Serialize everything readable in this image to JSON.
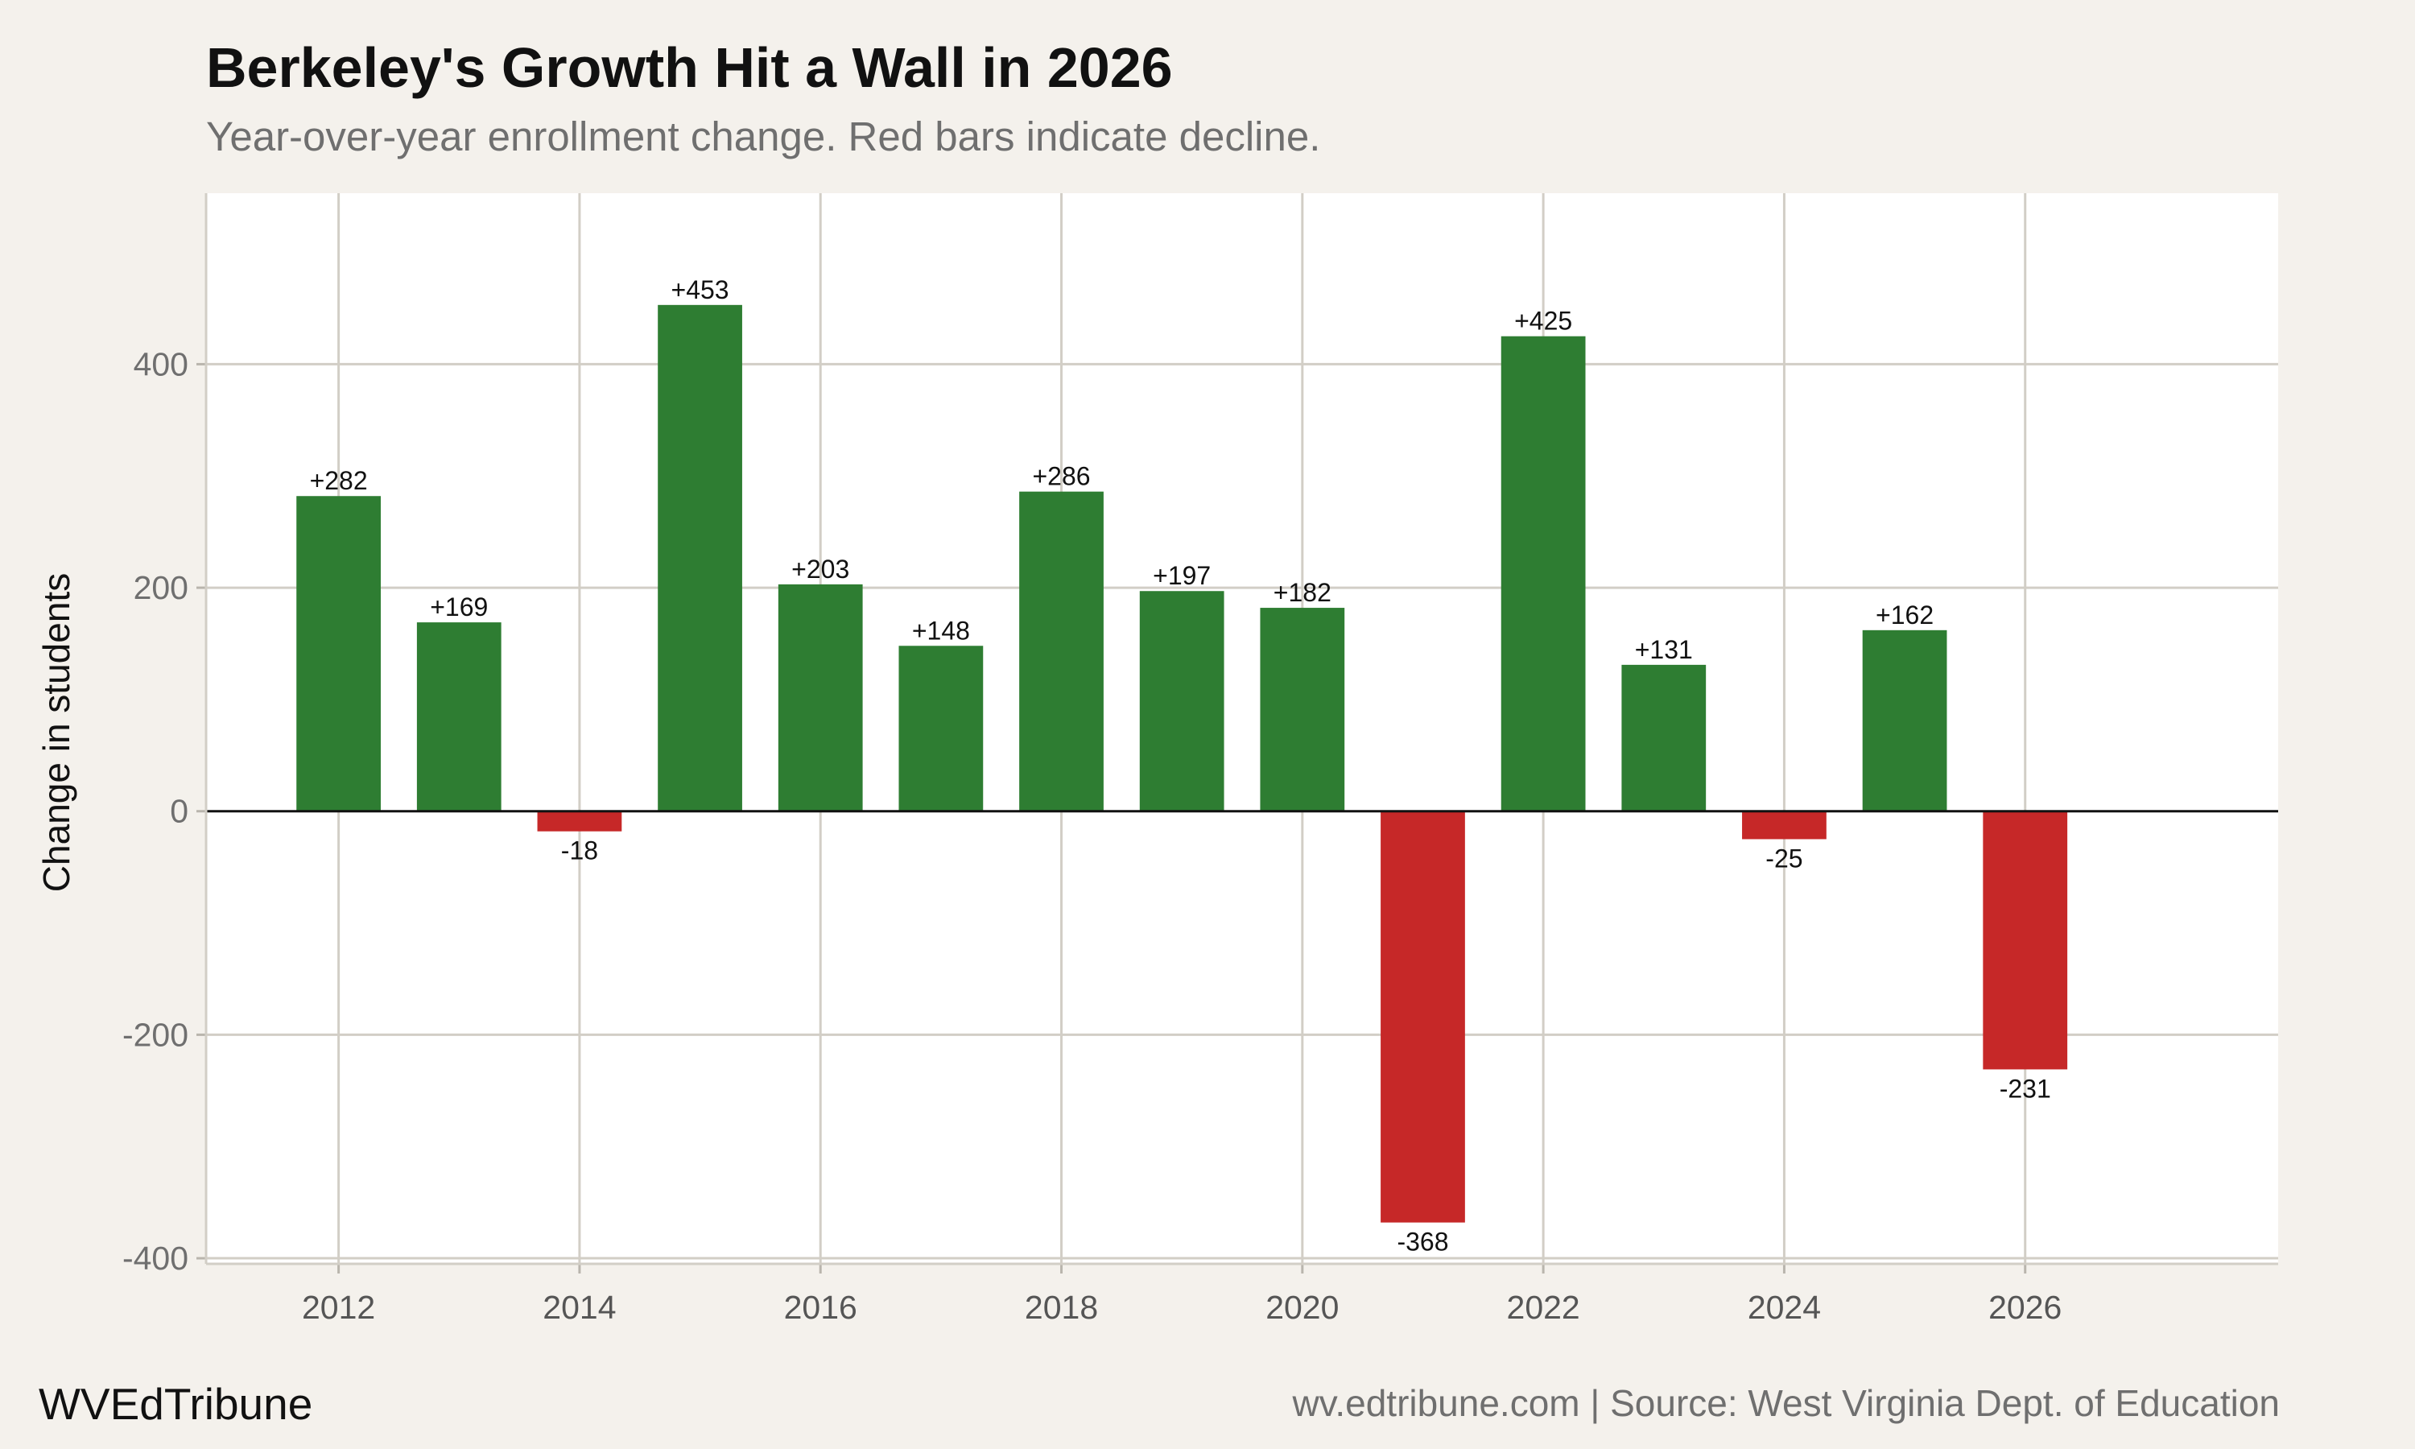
{
  "header": {
    "title": "Berkeley's Growth Hit a Wall in 2026",
    "subtitle": "Year-over-year enrollment change. Red bars indicate decline."
  },
  "footer": {
    "brand": "WVEdTribune",
    "source": "wv.edtribune.com | Source: West Virginia Dept. of Education"
  },
  "colors": {
    "increase": "#2e7d32",
    "decrease": "#c62828",
    "grid": "#d2cec6",
    "zero_line": "#111111",
    "panel": "#ffffff"
  },
  "chart_data": {
    "type": "bar",
    "title": "Berkeley's Growth Hit a Wall in 2026",
    "subtitle": "Year-over-year enrollment change. Red bars indicate decline.",
    "xlabel": "",
    "ylabel": "Change in students",
    "x": [
      2012,
      2013,
      2014,
      2015,
      2016,
      2017,
      2018,
      2019,
      2020,
      2021,
      2022,
      2023,
      2024,
      2025,
      2026
    ],
    "values": [
      282,
      169,
      -18,
      453,
      203,
      148,
      286,
      197,
      182,
      -368,
      425,
      131,
      -25,
      162,
      -231
    ],
    "data_labels": [
      "+282",
      "+169",
      "-18",
      "+453",
      "+203",
      "+148",
      "+286",
      "+197",
      "+182",
      "-368",
      "+425",
      "+131",
      "-25",
      "+162",
      "-231"
    ],
    "xticks": [
      2012,
      2014,
      2016,
      2018,
      2020,
      2022,
      2024,
      2026
    ],
    "xtick_labels": [
      "2012",
      "2014",
      "2016",
      "2018",
      "2020",
      "2022",
      "2024",
      "2026"
    ],
    "yticks": [
      -400,
      -200,
      0,
      200,
      400
    ],
    "ytick_labels": [
      "-400",
      "-200",
      "0",
      "200",
      "400"
    ],
    "xlim": [
      2010.9,
      2028.1
    ],
    "ylim": [
      -405,
      553
    ],
    "grid": true,
    "legend": null
  }
}
